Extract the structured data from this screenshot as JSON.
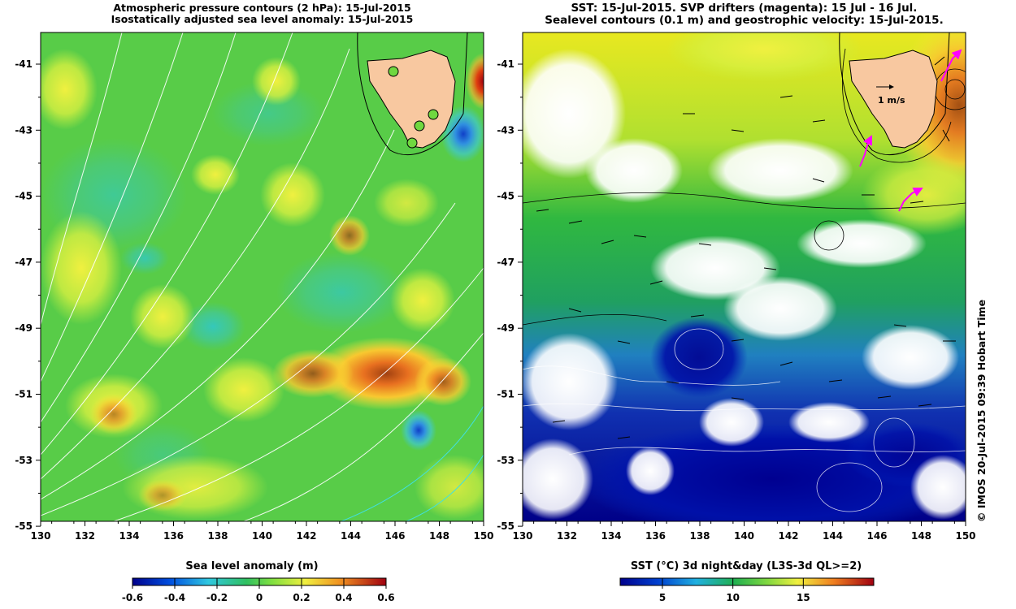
{
  "left_panel": {
    "title_line1": "Atmospheric pressure contours (2 hPa): 15-Jul-2015",
    "title_line2": "Isostatically adjusted sea level anomaly: 15-Jul-2015",
    "colorbar": {
      "label": "Sea level anomaly (m)",
      "ticks": [
        "-0.6",
        "-0.4",
        "-0.2",
        "0",
        "0.2",
        "0.4",
        "0.6"
      ],
      "range": [
        -0.6,
        0.6
      ]
    }
  },
  "right_panel": {
    "title_line1": "SST: 15-Jul-2015. SVP drifters (magenta): 15 Jul - 16 Jul.",
    "title_line2": "Sealevel contours (0.1 m) and geostrophic velocity: 15-Jul-2015.",
    "velocity_scale_label": "1 m/s",
    "colorbar": {
      "label": "SST (°C) 3d night&day (L3S-3d QL>=2)",
      "ticks": [
        "5",
        "10",
        "15"
      ],
      "range": [
        2,
        20
      ]
    }
  },
  "axes": {
    "lon_labels": [
      "130",
      "132",
      "134",
      "136",
      "138",
      "140",
      "142",
      "144",
      "146",
      "148",
      "150"
    ],
    "lat_labels": [
      "-41",
      "-43",
      "-45",
      "-47",
      "-49",
      "-51",
      "-53",
      "-55"
    ]
  },
  "credit": "© IMOS 20-Jul-2015 09:39 Hobart Time",
  "colors": {
    "land": "#f8c8a0",
    "drifters": "#ff00ff",
    "pressure_contours": "#ffffff"
  }
}
